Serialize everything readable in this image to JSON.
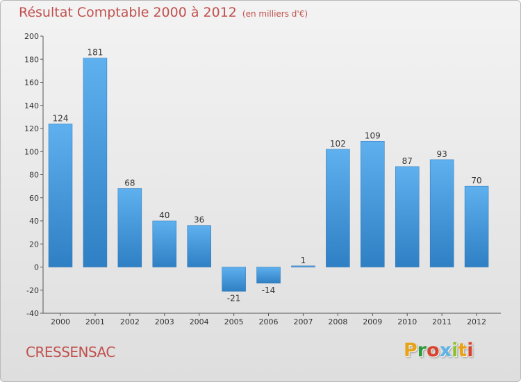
{
  "chart_data": {
    "type": "bar",
    "title": "Résultat Comptable 2000 à 2012",
    "subtitle": "(en milliers d'€)",
    "categories": [
      "2000",
      "2001",
      "2002",
      "2003",
      "2004",
      "2005",
      "2006",
      "2007",
      "2008",
      "2009",
      "2010",
      "2011",
      "2012"
    ],
    "values": [
      124,
      181,
      68,
      40,
      36,
      -21,
      -14,
      1,
      102,
      109,
      87,
      93,
      70
    ],
    "data_labels": [
      "124",
      "181",
      "68",
      "40",
      "36",
      "-21",
      "-14",
      "1",
      "102",
      "109",
      "87",
      "93",
      "70"
    ],
    "ylim": [
      -40,
      200
    ],
    "yticks": [
      -40,
      -20,
      0,
      20,
      40,
      60,
      80,
      100,
      120,
      140,
      160,
      180,
      200
    ],
    "grid": false,
    "xlabel": "",
    "ylabel": "",
    "bar_color": "#4b9fe0"
  },
  "footer": {
    "commune": "CRESSENSAC",
    "brand": "Proxiti",
    "brand_colors": [
      "#e8a317",
      "#2e9a3a",
      "#d8432b",
      "#5cb3e6",
      "#8fbf2e",
      "#e8a317",
      "#d8432b"
    ]
  }
}
